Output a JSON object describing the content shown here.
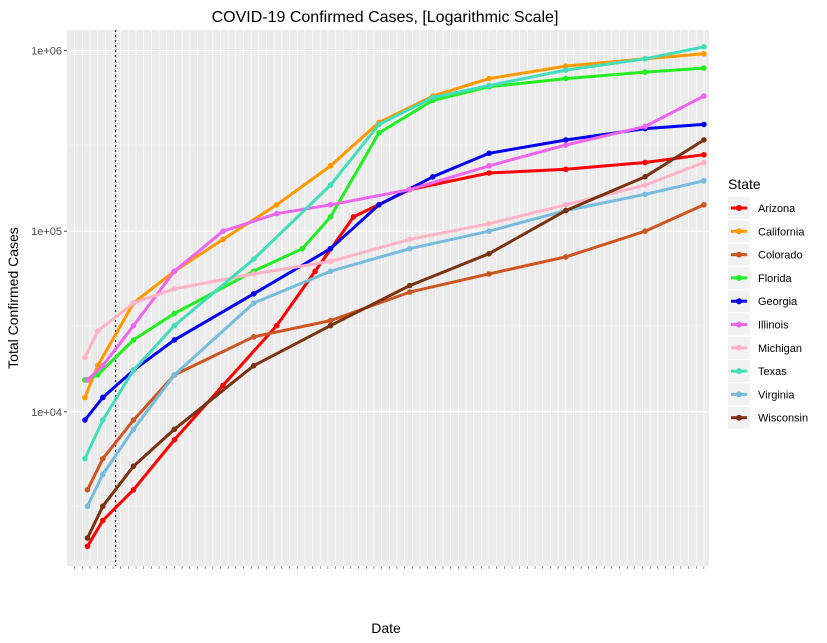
{
  "chart_data": {
    "type": "line",
    "title": "COVID-19 Confirmed Cases, [Logarithmic Scale]",
    "xlabel": "Date",
    "ylabel": "Total Confirmed Cases",
    "y_scale": "log10",
    "ylim": [
      1400,
      1300000
    ],
    "xlim": [
      "2020-03-20",
      "2020-11-26"
    ],
    "y_ticks": [
      10000,
      100000,
      1000000
    ],
    "y_tick_labels": [
      "1e+04",
      "1e+05",
      "1e+06"
    ],
    "vline_date": "2020-04-08",
    "grid": true,
    "legend_title": "State",
    "legend_position": "right",
    "x_ticks_dense": true,
    "series": [
      {
        "name": "Arizona",
        "color": "#ff0000",
        "x": [
          "2020-03-28",
          "2020-04-03",
          "2020-04-15",
          "2020-05-01",
          "2020-05-20",
          "2020-06-10",
          "2020-06-25",
          "2020-07-10",
          "2020-08-01",
          "2020-09-01",
          "2020-10-01",
          "2020-11-01",
          "2020-11-24"
        ],
        "y": [
          1800,
          2500,
          3700,
          7000,
          14000,
          30000,
          60000,
          120000,
          170000,
          210000,
          220000,
          240000,
          265000
        ]
      },
      {
        "name": "California",
        "color": "#ff9900",
        "x": [
          "2020-03-27",
          "2020-04-01",
          "2020-04-15",
          "2020-05-01",
          "2020-05-20",
          "2020-06-10",
          "2020-07-01",
          "2020-07-20",
          "2020-08-10",
          "2020-09-01",
          "2020-10-01",
          "2020-11-01",
          "2020-11-24"
        ],
        "y": [
          12000,
          18000,
          40000,
          60000,
          90000,
          140000,
          230000,
          400000,
          560000,
          700000,
          820000,
          900000,
          960000
        ]
      },
      {
        "name": "Colorado",
        "color": "#cc5522",
        "x": [
          "2020-03-28",
          "2020-04-03",
          "2020-04-15",
          "2020-05-01",
          "2020-06-01",
          "2020-07-01",
          "2020-08-01",
          "2020-09-01",
          "2020-10-01",
          "2020-11-01",
          "2020-11-24"
        ],
        "y": [
          3700,
          5500,
          9000,
          16000,
          26000,
          32000,
          46000,
          58000,
          72000,
          100000,
          140000
        ]
      },
      {
        "name": "Florida",
        "color": "#22ee22",
        "x": [
          "2020-03-27",
          "2020-04-01",
          "2020-04-15",
          "2020-05-01",
          "2020-06-01",
          "2020-06-20",
          "2020-07-01",
          "2020-07-20",
          "2020-08-10",
          "2020-09-01",
          "2020-10-01",
          "2020-11-01",
          "2020-11-24"
        ],
        "y": [
          15000,
          16000,
          25000,
          35000,
          60000,
          80000,
          120000,
          350000,
          530000,
          630000,
          700000,
          760000,
          800000
        ]
      },
      {
        "name": "Georgia",
        "color": "#0000ee",
        "x": [
          "2020-03-27",
          "2020-04-03",
          "2020-04-15",
          "2020-05-01",
          "2020-06-01",
          "2020-07-01",
          "2020-07-20",
          "2020-08-10",
          "2020-09-01",
          "2020-10-01",
          "2020-11-01",
          "2020-11-24"
        ],
        "y": [
          9000,
          12000,
          17000,
          25000,
          45000,
          80000,
          140000,
          200000,
          270000,
          320000,
          370000,
          390000
        ]
      },
      {
        "name": "Illinois",
        "color": "#ee66ee",
        "x": [
          "2020-03-28",
          "2020-04-03",
          "2020-04-15",
          "2020-05-01",
          "2020-05-20",
          "2020-06-10",
          "2020-07-01",
          "2020-08-01",
          "2020-09-01",
          "2020-10-01",
          "2020-11-01",
          "2020-11-24"
        ],
        "y": [
          15000,
          18000,
          30000,
          60000,
          100000,
          125000,
          140000,
          170000,
          230000,
          300000,
          380000,
          560000
        ]
      },
      {
        "name": "Michigan",
        "color": "#ffb3c6",
        "x": [
          "2020-03-27",
          "2020-04-01",
          "2020-04-15",
          "2020-05-01",
          "2020-06-01",
          "2020-07-01",
          "2020-08-01",
          "2020-09-01",
          "2020-10-01",
          "2020-11-01",
          "2020-11-24"
        ],
        "y": [
          20000,
          28000,
          40000,
          48000,
          58000,
          68000,
          90000,
          110000,
          140000,
          180000,
          240000
        ]
      },
      {
        "name": "Texas",
        "color": "#44ddbb",
        "x": [
          "2020-03-27",
          "2020-04-03",
          "2020-04-15",
          "2020-05-01",
          "2020-06-01",
          "2020-07-01",
          "2020-07-20",
          "2020-08-10",
          "2020-09-01",
          "2020-10-01",
          "2020-11-01",
          "2020-11-24"
        ],
        "y": [
          5500,
          9000,
          17000,
          30000,
          70000,
          180000,
          390000,
          550000,
          640000,
          780000,
          900000,
          1050000
        ]
      },
      {
        "name": "Virginia",
        "color": "#77bbdd",
        "x": [
          "2020-03-28",
          "2020-04-03",
          "2020-04-15",
          "2020-05-01",
          "2020-06-01",
          "2020-07-01",
          "2020-08-01",
          "2020-09-01",
          "2020-10-01",
          "2020-11-01",
          "2020-11-24"
        ],
        "y": [
          3000,
          4500,
          8000,
          16000,
          40000,
          60000,
          80000,
          100000,
          130000,
          160000,
          190000
        ]
      },
      {
        "name": "Wisconsin",
        "color": "#7a3311",
        "x": [
          "2020-03-28",
          "2020-04-03",
          "2020-04-15",
          "2020-05-01",
          "2020-06-01",
          "2020-07-01",
          "2020-08-01",
          "2020-09-01",
          "2020-10-01",
          "2020-11-01",
          "2020-11-24"
        ],
        "y": [
          2000,
          3000,
          5000,
          8000,
          18000,
          30000,
          50000,
          75000,
          130000,
          200000,
          320000
        ]
      }
    ]
  }
}
